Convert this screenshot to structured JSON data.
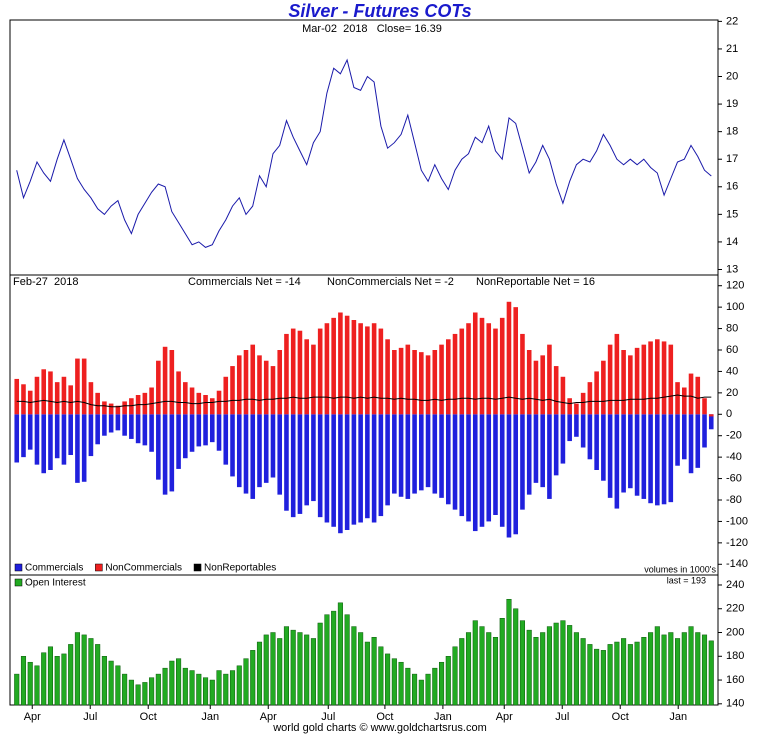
{
  "footer": "world gold charts © www.goldchartsrus.com",
  "chart_data": [
    {
      "type": "line",
      "title": "Silver - Futures COTs",
      "subtitle": "Mar-02  2018   Close= 16.39",
      "xlim": [
        -1,
        104
      ],
      "ylim": [
        12.8,
        22.05
      ],
      "yticks": [
        13,
        14,
        15,
        16,
        17,
        18,
        19,
        20,
        21,
        22
      ],
      "series": [
        {
          "color": "#1a1aaa",
          "values": [
            16.6,
            15.6,
            16.2,
            16.9,
            16.5,
            16.2,
            17.0,
            17.7,
            17.0,
            16.3,
            15.9,
            15.6,
            15.2,
            15.0,
            15.3,
            15.5,
            14.8,
            14.3,
            15.0,
            15.4,
            15.8,
            16.1,
            16.0,
            15.1,
            14.7,
            14.3,
            13.9,
            14.0,
            13.8,
            13.9,
            14.4,
            14.8,
            15.3,
            15.6,
            15.0,
            15.3,
            16.4,
            16.0,
            17.2,
            17.5,
            18.4,
            17.8,
            17.3,
            16.8,
            17.6,
            18.0,
            19.4,
            20.3,
            20.1,
            20.6,
            19.6,
            19.5,
            20.0,
            19.8,
            18.2,
            17.4,
            17.6,
            17.9,
            18.6,
            17.6,
            16.6,
            16.2,
            16.8,
            16.3,
            15.9,
            16.6,
            17.0,
            17.2,
            17.8,
            17.6,
            18.2,
            17.3,
            17.0,
            18.5,
            18.3,
            17.4,
            16.5,
            16.9,
            17.5,
            17.0,
            16.1,
            15.4,
            16.2,
            16.8,
            17.0,
            16.9,
            17.3,
            17.9,
            17.5,
            17.0,
            16.8,
            17.0,
            16.8,
            17.0,
            16.7,
            16.5,
            15.7,
            16.3,
            16.9,
            17.0,
            17.5,
            17.1,
            16.6,
            16.39
          ]
        }
      ]
    },
    {
      "type": "bar",
      "date_label": "Feb-27  2018",
      "annotations": [
        "Commercials Net = -14",
        "NonCommercials Net = -2",
        "NonReportable Net = 16",
        "volumes in 1000's"
      ],
      "xlim": [
        -1,
        104
      ],
      "ylim": [
        -150,
        130
      ],
      "yticks": [
        -140,
        -120,
        -100,
        -80,
        -60,
        -40,
        -20,
        0,
        20,
        40,
        60,
        80,
        100,
        120
      ],
      "legend": "bottom-left",
      "series": [
        {
          "name": "Commercials",
          "color": "#2020dd",
          "values": [
            -45,
            -40,
            -33,
            -47,
            -55,
            -52,
            -41,
            -47,
            -38,
            -64,
            -63,
            -39,
            -28,
            -20,
            -17,
            -15,
            -20,
            -23,
            -27,
            -29,
            -35,
            -61,
            -75,
            -72,
            -51,
            -41,
            -35,
            -30,
            -29,
            -26,
            -34,
            -47,
            -58,
            -68,
            -74,
            -79,
            -68,
            -64,
            -59,
            -75,
            -90,
            -96,
            -93,
            -85,
            -81,
            -96,
            -101,
            -105,
            -111,
            -108,
            -103,
            -101,
            -97,
            -101,
            -95,
            -85,
            -74,
            -77,
            -79,
            -74,
            -71,
            -68,
            -74,
            -78,
            -84,
            -89,
            -95,
            -100,
            -109,
            -105,
            -100,
            -94,
            -105,
            -115,
            -112,
            -89,
            -75,
            -64,
            -68,
            -79,
            -57,
            -46,
            -25,
            -21,
            -31,
            -42,
            -52,
            -62,
            -78,
            -88,
            -73,
            -69,
            -76,
            -79,
            -83,
            -85,
            -84,
            -82,
            -48,
            -42,
            -55,
            -50,
            -31,
            -14
          ]
        },
        {
          "name": "NonCommercials",
          "color": "#ee2020",
          "values": [
            33,
            28,
            22,
            35,
            42,
            40,
            30,
            35,
            27,
            52,
            52,
            30,
            20,
            12,
            10,
            8,
            12,
            15,
            18,
            20,
            25,
            50,
            63,
            60,
            40,
            30,
            25,
            20,
            18,
            15,
            22,
            35,
            45,
            55,
            60,
            65,
            55,
            50,
            45,
            60,
            75,
            80,
            78,
            70,
            65,
            80,
            85,
            90,
            95,
            92,
            88,
            85,
            82,
            85,
            80,
            70,
            60,
            62,
            65,
            60,
            58,
            55,
            60,
            65,
            70,
            75,
            80,
            85,
            95,
            90,
            85,
            80,
            90,
            105,
            100,
            75,
            60,
            50,
            55,
            65,
            45,
            35,
            15,
            10,
            20,
            30,
            40,
            50,
            65,
            75,
            60,
            55,
            62,
            65,
            68,
            70,
            68,
            65,
            30,
            25,
            38,
            35,
            15,
            -2
          ]
        },
        {
          "name": "NonReportables",
          "color": "#000000",
          "type": "line",
          "values": [
            12,
            12,
            11,
            12,
            13,
            12,
            11,
            12,
            11,
            12,
            11,
            9,
            8,
            8,
            7,
            7,
            8,
            8,
            9,
            9,
            10,
            11,
            12,
            12,
            11,
            11,
            10,
            10,
            11,
            11,
            12,
            12,
            13,
            13,
            14,
            14,
            13,
            14,
            14,
            15,
            15,
            16,
            15,
            15,
            16,
            16,
            16,
            15,
            16,
            16,
            15,
            16,
            15,
            16,
            15,
            15,
            14,
            15,
            14,
            14,
            13,
            13,
            14,
            13,
            14,
            14,
            15,
            15,
            14,
            15,
            15,
            14,
            15,
            16,
            15,
            14,
            15,
            14,
            13,
            14,
            12,
            11,
            10,
            11,
            11,
            12,
            12,
            12,
            13,
            13,
            13,
            14,
            14,
            14,
            15,
            15,
            16,
            17,
            18,
            17,
            17,
            15,
            16,
            16
          ]
        }
      ]
    },
    {
      "type": "bar",
      "annotations": [
        "last = 193"
      ],
      "xlim": [
        -1,
        104
      ],
      "ylim": [
        139,
        248.4
      ],
      "yticks": [
        140,
        160,
        180,
        200,
        220,
        240
      ],
      "xticks": [
        {
          "value": 2.3,
          "label": "Apr"
        },
        {
          "value": 10.9,
          "label": "Jul"
        },
        {
          "value": 19.5,
          "label": "Oct"
        },
        {
          "value": 28.7,
          "label": "Jan"
        },
        {
          "value": 37.3,
          "label": "Apr"
        },
        {
          "value": 46.2,
          "label": "Jul"
        },
        {
          "value": 54.6,
          "label": "Oct"
        },
        {
          "value": 63.2,
          "label": "Jan"
        },
        {
          "value": 72.3,
          "label": "Apr"
        },
        {
          "value": 80.9,
          "label": "Jul"
        },
        {
          "value": 89.5,
          "label": "Oct"
        },
        {
          "value": 98.1,
          "label": "Jan"
        }
      ],
      "legend": "top-left",
      "series": [
        {
          "name": "Open Interest",
          "color": "#22aa22",
          "values": [
            165,
            180,
            175,
            172,
            183,
            188,
            180,
            182,
            190,
            200,
            198,
            195,
            190,
            180,
            176,
            172,
            165,
            160,
            156,
            158,
            162,
            165,
            170,
            176,
            178,
            170,
            168,
            165,
            162,
            160,
            168,
            165,
            168,
            172,
            178,
            185,
            192,
            198,
            200,
            195,
            205,
            202,
            200,
            198,
            195,
            208,
            215,
            218,
            225,
            215,
            205,
            200,
            192,
            196,
            188,
            182,
            178,
            175,
            170,
            165,
            160,
            165,
            170,
            175,
            180,
            188,
            195,
            200,
            210,
            205,
            200,
            196,
            212,
            228,
            220,
            210,
            202,
            196,
            200,
            205,
            208,
            210,
            206,
            200,
            195,
            190,
            186,
            185,
            190,
            192,
            195,
            190,
            192,
            196,
            200,
            205,
            198,
            200,
            195,
            200,
            205,
            200,
            198,
            193
          ]
        }
      ]
    }
  ]
}
